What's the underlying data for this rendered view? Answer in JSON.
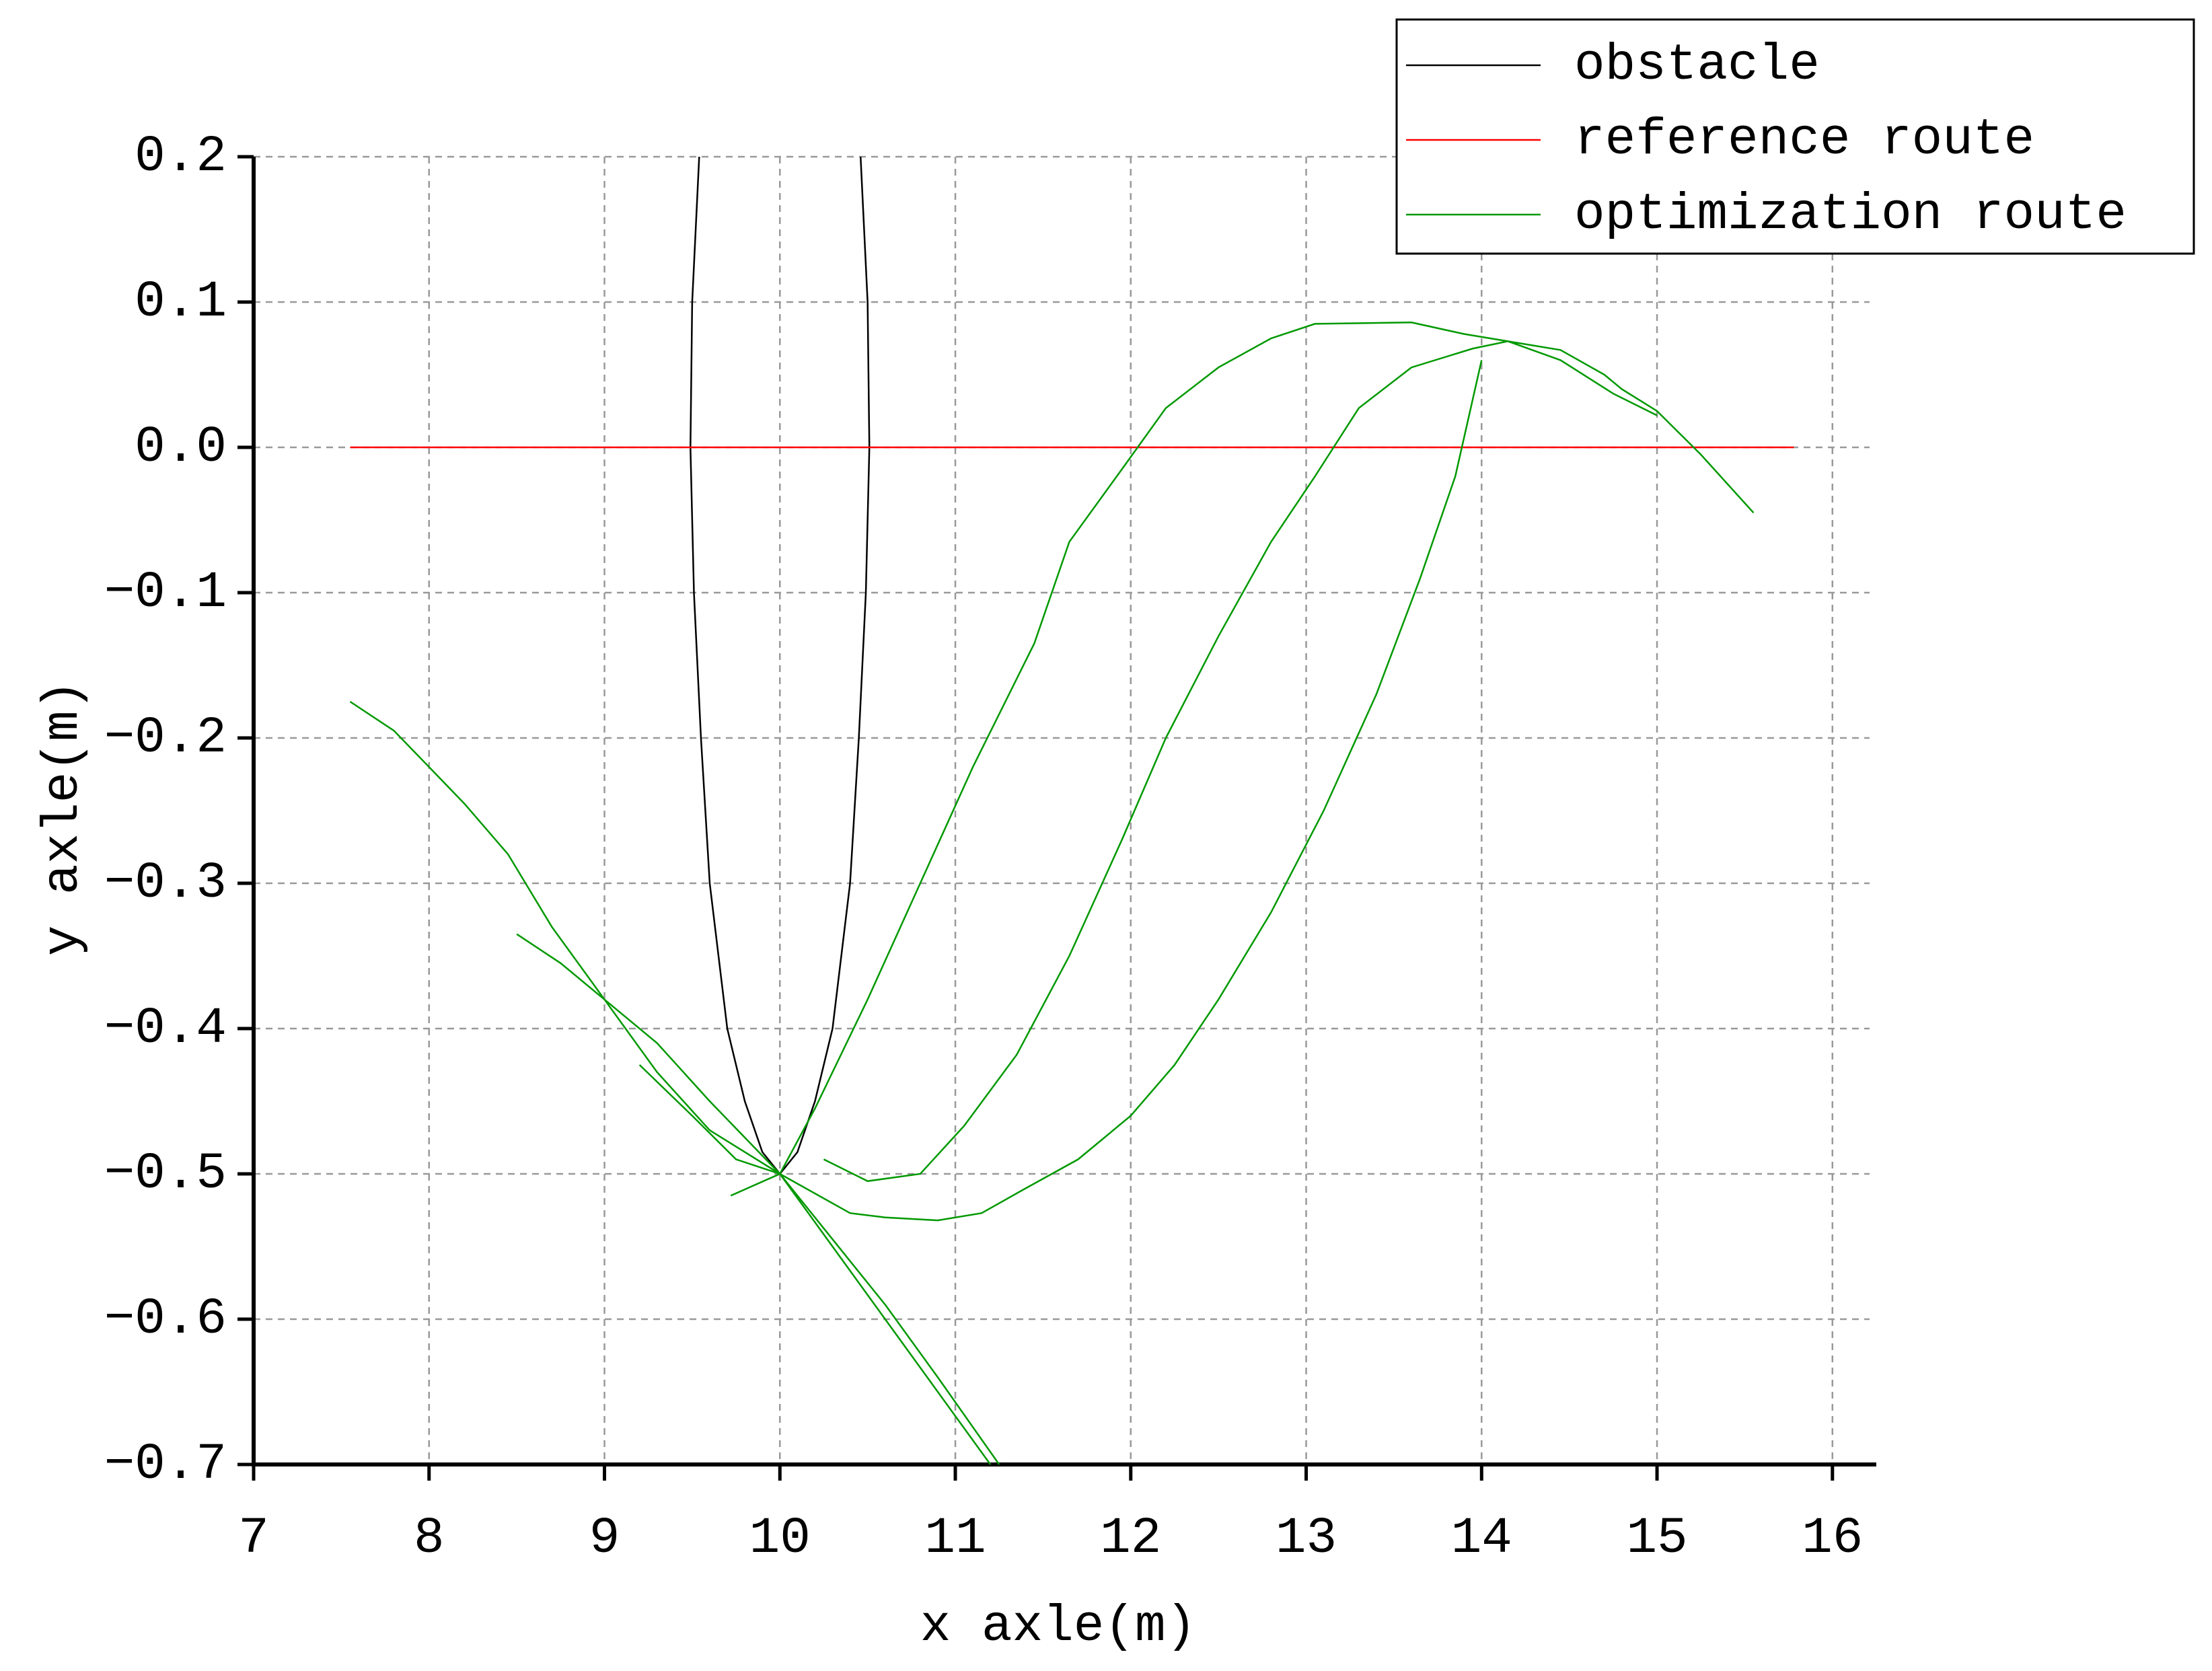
{
  "chart_data": {
    "type": "line",
    "x_label": "x axle(m)",
    "y_label": "y axle(m)",
    "xlim": [
      7,
      16.25
    ],
    "ylim": [
      -0.7,
      0.2
    ],
    "xticks": [
      7,
      8,
      9,
      10,
      11,
      12,
      13,
      14,
      15,
      16
    ],
    "yticks": [
      0.2,
      0.1,
      {
        "value": 0,
        "label": "0.0"
      },
      {
        "value": -0.1,
        "label": "−0.1"
      },
      {
        "value": -0.2,
        "label": "−0.2"
      },
      {
        "value": -0.3,
        "label": "−0.3"
      },
      {
        "value": -0.4,
        "label": "−0.4"
      },
      {
        "value": -0.5,
        "label": "−0.5"
      },
      {
        "value": -0.6,
        "label": "−0.6"
      },
      {
        "value": -0.7,
        "label": "−0.7"
      }
    ],
    "grid": true,
    "legend": "top-right",
    "series": [
      {
        "name": "obstacle",
        "color": "#000000",
        "x": [
          9.54,
          9.5,
          9.49,
          9.51,
          9.55,
          9.6,
          9.7,
          9.8,
          9.9,
          10,
          10.1,
          10.2,
          10.3,
          10.4,
          10.45,
          10.49,
          10.51,
          10.5,
          10.46
        ],
        "values": [
          0.2,
          0.1,
          0,
          -0.1,
          -0.2,
          -0.3,
          -0.4,
          -0.45,
          -0.485,
          -0.5,
          -0.485,
          -0.45,
          -0.4,
          -0.3,
          -0.2,
          -0.1,
          0,
          0.1,
          0.2
        ]
      },
      {
        "name": "reference route",
        "color": "#ff0000",
        "x": [
          7.55,
          15.78
        ],
        "values": [
          0,
          0
        ]
      },
      {
        "name": "optimization route",
        "color": "#009900",
        "x": [
          7.55,
          7.8,
          8,
          8.2,
          8.45,
          8.7,
          9,
          9.3,
          9.6,
          10,
          10.4,
          10.6,
          10.9,
          11.15,
          11.4,
          11.7,
          12,
          12.25,
          12.5,
          12.8,
          13.1,
          13.4,
          13.65,
          13.85,
          14,
          null,
          8.5,
          8.75,
          9,
          9.3,
          9.6,
          10,
          10.3,
          10.6,
          10.9,
          11.25,
          null,
          9.2,
          9.5,
          9.75,
          10,
          10.3,
          10.6,
          10.9,
          11.2,
          null,
          9.72,
          10,
          10.2,
          10.5,
          10.8,
          11.1,
          11.45,
          11.65,
          11.95,
          12.2,
          12.5,
          12.8,
          13.05,
          13.6,
          13.9,
          14.2,
          14.45,
          14.7,
          14.8,
          15,
          15.25,
          15.55,
          null,
          10.25,
          10.5,
          10.8,
          11.05,
          11.35,
          11.65,
          11.95,
          12.2,
          12.5,
          12.8,
          13.05,
          13.3,
          13.6,
          13.95,
          14.15,
          14.45,
          14.75,
          15
        ],
        "values": [
          -0.175,
          -0.195,
          -0.22,
          -0.245,
          -0.28,
          -0.33,
          -0.38,
          -0.43,
          -0.47,
          -0.5,
          -0.527,
          -0.53,
          -0.532,
          -0.527,
          -0.51,
          -0.49,
          -0.46,
          -0.425,
          -0.38,
          -0.32,
          -0.25,
          -0.17,
          -0.09,
          -0.02,
          0.06,
          null,
          -0.335,
          -0.355,
          -0.38,
          -0.41,
          -0.45,
          -0.5,
          -0.545,
          -0.59,
          -0.64,
          -0.7,
          null,
          -0.425,
          -0.46,
          -0.49,
          -0.5,
          -0.55,
          -0.6,
          -0.65,
          -0.7,
          null,
          -0.515,
          -0.5,
          -0.455,
          -0.38,
          -0.3,
          -0.22,
          -0.135,
          -0.065,
          -0.015,
          0.027,
          0.055,
          0.075,
          0.085,
          0.086,
          0.078,
          0.072,
          0.067,
          0.05,
          0.04,
          0.025,
          -0.005,
          -0.045,
          null,
          -0.49,
          -0.505,
          -0.5,
          -0.467,
          -0.418,
          -0.35,
          -0.27,
          -0.2,
          -0.13,
          -0.065,
          -0.02,
          0.027,
          0.055,
          0.068,
          0.073,
          0.06,
          0.037,
          0.022
        ]
      }
    ]
  }
}
